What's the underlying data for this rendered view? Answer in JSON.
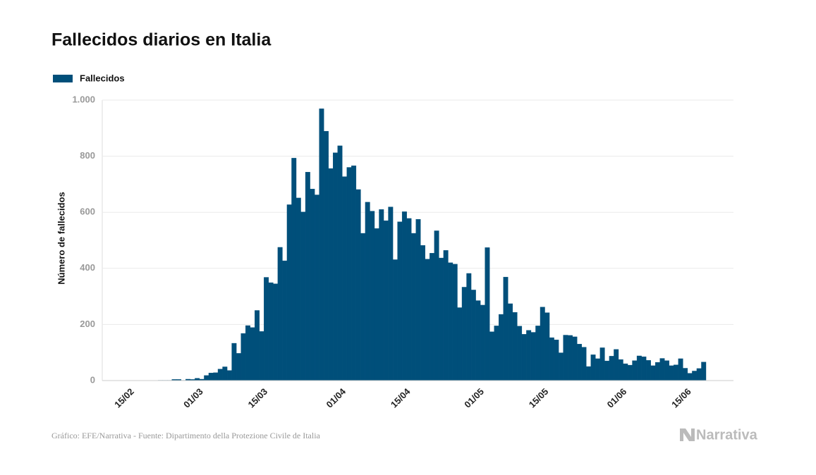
{
  "chart_data": {
    "type": "bar",
    "title": "Fallecidos diarios en Italia",
    "y_axis_label": "Número de fallecidos",
    "source": "Gráfico: EFE/Narrativa - Fuente: Dipartimento della Protezione Civile de Italia",
    "logo": "Narrativa",
    "series": [
      {
        "name": "Fallecidos",
        "color": "#004f7a",
        "values": [
          0,
          0,
          0,
          0,
          0,
          0,
          1,
          1,
          1,
          4,
          4,
          1,
          5,
          4,
          8,
          5,
          18,
          27,
          28,
          41,
          49,
          36,
          133,
          97,
          168,
          196,
          189,
          250,
          175,
          368,
          349,
          345,
          475,
          427,
          627,
          793,
          651,
          601,
          743,
          683,
          662,
          969,
          889,
          756,
          812,
          837,
          727,
          760,
          766,
          681,
          525,
          636,
          604,
          542,
          610,
          570,
          619,
          431,
          566,
          602,
          578,
          525,
          575,
          482,
          433,
          454,
          534,
          437,
          464,
          420,
          415,
          260,
          333,
          382,
          323,
          285,
          269,
          474,
          174,
          195,
          236,
          369,
          274,
          243,
          194,
          165,
          179,
          172,
          195,
          262,
          242,
          153,
          145,
          99,
          162,
          161,
          156,
          130,
          119,
          50,
          92,
          78,
          117,
          70,
          87,
          111,
          75,
          60,
          55,
          71,
          88,
          85,
          72,
          53,
          65,
          79,
          71,
          53,
          56,
          78,
          44,
          26,
          34,
          43,
          66
        ]
      }
    ],
    "categories": [
      "15/02",
      "16/02",
      "17/02",
      "18/02",
      "19/02",
      "20/02",
      "21/02",
      "22/02",
      "23/02",
      "24/02",
      "25/02",
      "26/02",
      "27/02",
      "28/02",
      "29/02",
      "01/03",
      "02/03",
      "03/03",
      "04/03",
      "05/03",
      "06/03",
      "07/03",
      "08/03",
      "09/03",
      "10/03",
      "11/03",
      "12/03",
      "13/03",
      "14/03",
      "15/03",
      "16/03",
      "17/03",
      "18/03",
      "19/03",
      "20/03",
      "21/03",
      "22/03",
      "23/03",
      "24/03",
      "25/03",
      "26/03",
      "27/03",
      "28/03",
      "29/03",
      "30/03",
      "31/03",
      "01/04",
      "02/04",
      "03/04",
      "04/04",
      "05/04",
      "06/04",
      "07/04",
      "08/04",
      "09/04",
      "10/04",
      "11/04",
      "12/04",
      "13/04",
      "14/04",
      "15/04",
      "16/04",
      "17/04",
      "18/04",
      "19/04",
      "20/04",
      "21/04",
      "22/04",
      "23/04",
      "24/04",
      "25/04",
      "26/04",
      "27/04",
      "28/04",
      "29/04",
      "30/04",
      "01/05",
      "02/05",
      "03/05",
      "04/05",
      "05/05",
      "06/05",
      "07/05",
      "08/05",
      "09/05",
      "10/05",
      "11/05",
      "12/05",
      "13/05",
      "14/05",
      "15/05",
      "16/05",
      "17/05",
      "18/05",
      "19/05",
      "20/05",
      "21/05",
      "22/05",
      "23/05",
      "24/05",
      "25/05",
      "26/05",
      "27/05",
      "28/05",
      "29/05",
      "30/05",
      "31/05",
      "01/06",
      "02/06",
      "03/06",
      "04/06",
      "05/06",
      "06/06",
      "07/06",
      "08/06",
      "09/06",
      "10/06",
      "11/06",
      "12/06",
      "13/06",
      "14/06",
      "15/06",
      "16/06",
      "17/06",
      "18/06"
    ],
    "xticks": [
      "15/02",
      "01/03",
      "15/03",
      "01/04",
      "15/04",
      "01/05",
      "15/05",
      "01/06",
      "15/06"
    ],
    "ylim": [
      0,
      1000
    ],
    "yticks": [
      0,
      200,
      400,
      600,
      800,
      {
        "value": 1000,
        "label": "1.000"
      }
    ],
    "grid": true,
    "legend": "top-left"
  }
}
